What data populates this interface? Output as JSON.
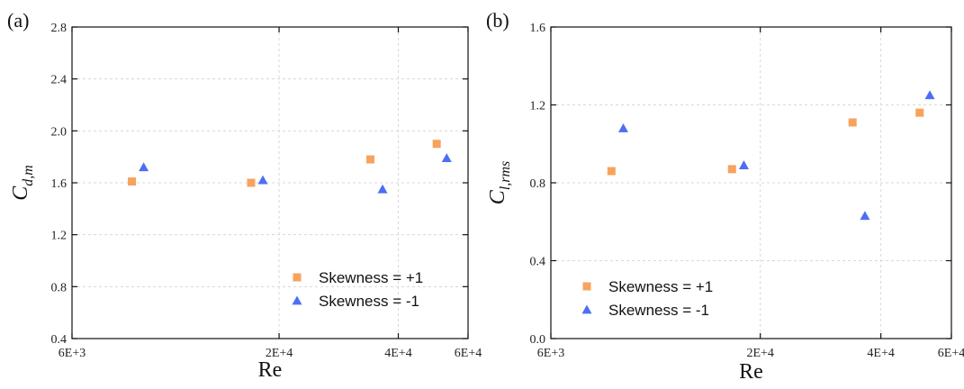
{
  "chart_data": [
    {
      "type": "scatter",
      "panel_label": "(a)",
      "xlabel": "Re",
      "ylabel": "C",
      "ylabel_sub": "d,m",
      "x_scale": "log",
      "xlim": [
        6000,
        60000
      ],
      "xticks": [
        6000,
        20000,
        40000,
        60000
      ],
      "xtick_labels": [
        "6E+3",
        "2E+4",
        "4E+4",
        "6E+4"
      ],
      "ylim": [
        0.4,
        2.8
      ],
      "yticks": [
        0.4,
        0.8,
        1.2,
        1.6,
        2.0,
        2.4,
        2.8
      ],
      "ytick_labels": [
        "0.4",
        "0.8",
        "1.2",
        "1.6",
        "2.0",
        "2.4",
        "2.8"
      ],
      "grid": true,
      "legend_position": "bottom-right",
      "series": [
        {
          "name": "Skewness = +1",
          "marker": "square",
          "color": "#F7A35C",
          "x": [
            8500,
            17000,
            34000,
            50000
          ],
          "y": [
            1.61,
            1.6,
            1.78,
            1.9
          ]
        },
        {
          "name": "Skewness = -1",
          "marker": "triangle",
          "color": "#4C6EF5",
          "x": [
            9100,
            18200,
            36500,
            53000
          ],
          "y": [
            1.72,
            1.62,
            1.55,
            1.79
          ]
        }
      ]
    },
    {
      "type": "scatter",
      "panel_label": "(b)",
      "xlabel": "Re",
      "ylabel": "C",
      "ylabel_sub": "l,rms",
      "x_scale": "log",
      "xlim": [
        6000,
        60000
      ],
      "xticks": [
        6000,
        20000,
        40000,
        60000
      ],
      "xtick_labels": [
        "6E+3",
        "2E+4",
        "4E+4",
        "6E+4"
      ],
      "ylim": [
        0.0,
        1.6
      ],
      "yticks": [
        0.0,
        0.4,
        0.8,
        1.2,
        1.6
      ],
      "ytick_labels": [
        "0.0",
        "0.4",
        "0.8",
        "1.2",
        "1.6"
      ],
      "grid": true,
      "legend_position": "bottom-left",
      "series": [
        {
          "name": "Skewness = +1",
          "marker": "square",
          "color": "#F7A35C",
          "x": [
            8500,
            17000,
            34000,
            50000
          ],
          "y": [
            0.86,
            0.87,
            1.11,
            1.16
          ]
        },
        {
          "name": "Skewness = -1",
          "marker": "triangle",
          "color": "#4C6EF5",
          "x": [
            9100,
            18200,
            36500,
            53000
          ],
          "y": [
            1.08,
            0.89,
            0.63,
            1.25
          ]
        }
      ]
    }
  ]
}
